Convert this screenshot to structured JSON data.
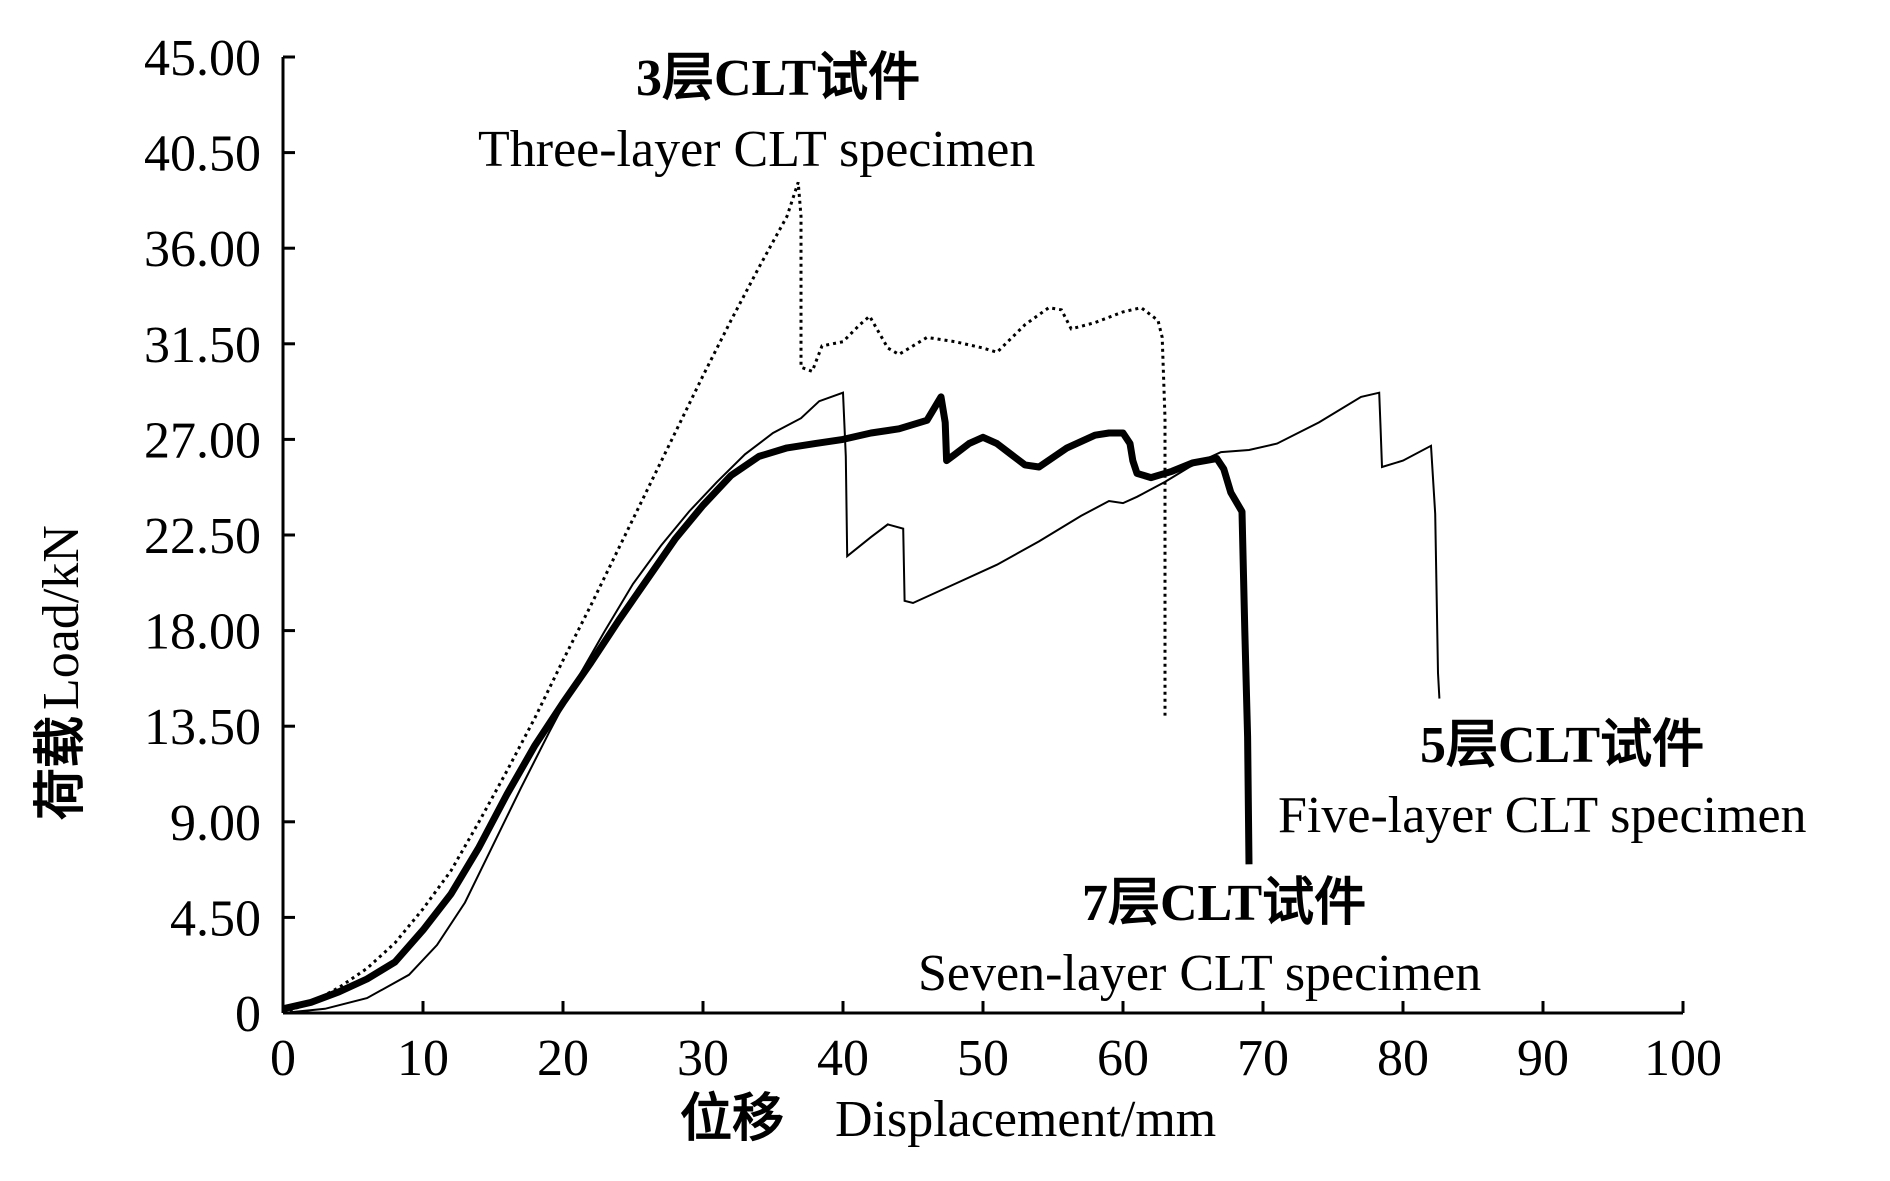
{
  "chart_data": {
    "type": "line",
    "xlabel_cn": "位移",
    "xlabel_en": "Displacement/mm",
    "ylabel_cn": "荷载",
    "ylabel_en": "Load/kN",
    "xlim": [
      0,
      100
    ],
    "ylim": [
      0,
      45
    ],
    "x_ticks": [
      "0",
      "10",
      "20",
      "30",
      "40",
      "50",
      "60",
      "70",
      "80",
      "90",
      "100"
    ],
    "y_ticks": [
      "0",
      "4.50",
      "9.00",
      "13.50",
      "18.00",
      "22.50",
      "27.00",
      "31.50",
      "36.00",
      "40.50",
      "45.00"
    ],
    "grid": false,
    "legend": "none",
    "series": [
      {
        "name": "3层CLT试件 Three-layer CLT specimen",
        "style": "dotted",
        "points": [
          [
            0,
            0
          ],
          [
            2,
            0.5
          ],
          [
            4,
            1.2
          ],
          [
            6,
            2.1
          ],
          [
            8,
            3.3
          ],
          [
            10,
            4.9
          ],
          [
            12,
            6.7
          ],
          [
            14,
            9.0
          ],
          [
            16,
            11.4
          ],
          [
            18,
            13.9
          ],
          [
            20,
            16.6
          ],
          [
            22,
            19.2
          ],
          [
            24,
            21.9
          ],
          [
            26,
            24.6
          ],
          [
            28,
            27.3
          ],
          [
            30,
            30.0
          ],
          [
            32,
            32.6
          ],
          [
            34,
            35.1
          ],
          [
            36,
            37.5
          ],
          [
            36.8,
            39.1
          ],
          [
            37.0,
            37.5
          ],
          [
            37.0,
            30.4
          ],
          [
            37.8,
            30.2
          ],
          [
            38.5,
            31.4
          ],
          [
            40,
            31.6
          ],
          [
            41.2,
            32.4
          ],
          [
            41.9,
            32.8
          ],
          [
            43.2,
            31.3
          ],
          [
            44,
            31.0
          ],
          [
            46,
            31.8
          ],
          [
            48,
            31.6
          ],
          [
            50,
            31.3
          ],
          [
            51,
            31.1
          ],
          [
            53,
            32.4
          ],
          [
            54.7,
            33.2
          ],
          [
            55.6,
            33.1
          ],
          [
            56.3,
            32.2
          ],
          [
            58,
            32.5
          ],
          [
            60,
            33.0
          ],
          [
            61.3,
            33.2
          ],
          [
            62.5,
            32.6
          ],
          [
            62.8,
            31.8
          ],
          [
            63.0,
            28.0
          ],
          [
            63.0,
            14.0
          ]
        ]
      },
      {
        "name": "5层CLT试件 Five-layer CLT specimen",
        "style": "thin",
        "points": [
          [
            0,
            0
          ],
          [
            3,
            0.2
          ],
          [
            6,
            0.7
          ],
          [
            9,
            1.8
          ],
          [
            11,
            3.2
          ],
          [
            13,
            5.2
          ],
          [
            15,
            7.9
          ],
          [
            17,
            10.6
          ],
          [
            19,
            13.2
          ],
          [
            21,
            15.7
          ],
          [
            23,
            18.0
          ],
          [
            25,
            20.2
          ],
          [
            27,
            22.0
          ],
          [
            29,
            23.6
          ],
          [
            31,
            25.0
          ],
          [
            33,
            26.3
          ],
          [
            35,
            27.3
          ],
          [
            37,
            28.0
          ],
          [
            38.3,
            28.8
          ],
          [
            40.0,
            29.2
          ],
          [
            40.2,
            26.2
          ],
          [
            40.3,
            21.5
          ],
          [
            42,
            22.4
          ],
          [
            43.2,
            23.0
          ],
          [
            44.3,
            22.8
          ],
          [
            44.4,
            19.4
          ],
          [
            45,
            19.3
          ],
          [
            48,
            20.2
          ],
          [
            51,
            21.1
          ],
          [
            54,
            22.2
          ],
          [
            57,
            23.4
          ],
          [
            59,
            24.1
          ],
          [
            60,
            24.0
          ],
          [
            61,
            24.3
          ],
          [
            63,
            25.0
          ],
          [
            65,
            25.8
          ],
          [
            67,
            26.4
          ],
          [
            69,
            26.5
          ],
          [
            71,
            26.8
          ],
          [
            74,
            27.8
          ],
          [
            77,
            29.0
          ],
          [
            78.3,
            29.2
          ],
          [
            78.4,
            27.5
          ],
          [
            78.5,
            25.7
          ],
          [
            80,
            26.0
          ],
          [
            82,
            26.7
          ],
          [
            82.3,
            23.5
          ],
          [
            82.5,
            16.0
          ],
          [
            82.6,
            14.8
          ]
        ]
      },
      {
        "name": "7层CLT试件 Seven-layer CLT specimen",
        "style": "thick",
        "points": [
          [
            0,
            0.2
          ],
          [
            2,
            0.5
          ],
          [
            4,
            1.0
          ],
          [
            6,
            1.6
          ],
          [
            8,
            2.4
          ],
          [
            10,
            3.9
          ],
          [
            12,
            5.6
          ],
          [
            14,
            7.8
          ],
          [
            16,
            10.3
          ],
          [
            18,
            12.6
          ],
          [
            20,
            14.6
          ],
          [
            22,
            16.5
          ],
          [
            24,
            18.5
          ],
          [
            26,
            20.4
          ],
          [
            28,
            22.3
          ],
          [
            30,
            23.9
          ],
          [
            32,
            25.3
          ],
          [
            34,
            26.2
          ],
          [
            36,
            26.6
          ],
          [
            38,
            26.8
          ],
          [
            40,
            27.0
          ],
          [
            42,
            27.3
          ],
          [
            44,
            27.5
          ],
          [
            46,
            27.9
          ],
          [
            47.0,
            29.0
          ],
          [
            47.3,
            27.8
          ],
          [
            47.4,
            26.0
          ],
          [
            48,
            26.3
          ],
          [
            49,
            26.8
          ],
          [
            50,
            27.1
          ],
          [
            51,
            26.8
          ],
          [
            52,
            26.3
          ],
          [
            53,
            25.8
          ],
          [
            54,
            25.7
          ],
          [
            56,
            26.6
          ],
          [
            58,
            27.2
          ],
          [
            59,
            27.3
          ],
          [
            60,
            27.3
          ],
          [
            60.5,
            26.8
          ],
          [
            60.7,
            26.0
          ],
          [
            61,
            25.4
          ],
          [
            62,
            25.2
          ],
          [
            63.5,
            25.5
          ],
          [
            65,
            25.9
          ],
          [
            66.7,
            26.1
          ],
          [
            67.2,
            25.6
          ],
          [
            67.7,
            24.5
          ],
          [
            68.5,
            23.6
          ],
          [
            68.7,
            18.0
          ],
          [
            68.9,
            13.0
          ],
          [
            69.0,
            7.0
          ]
        ]
      }
    ],
    "annotations": [
      {
        "cn": "3层CLT试件",
        "en": "Three-layer CLT specimen"
      },
      {
        "cn": "5层CLT试件",
        "en": "Five-layer CLT specimen"
      },
      {
        "cn": "7层CLT试件",
        "en": "Seven-layer CLT specimen"
      }
    ]
  }
}
